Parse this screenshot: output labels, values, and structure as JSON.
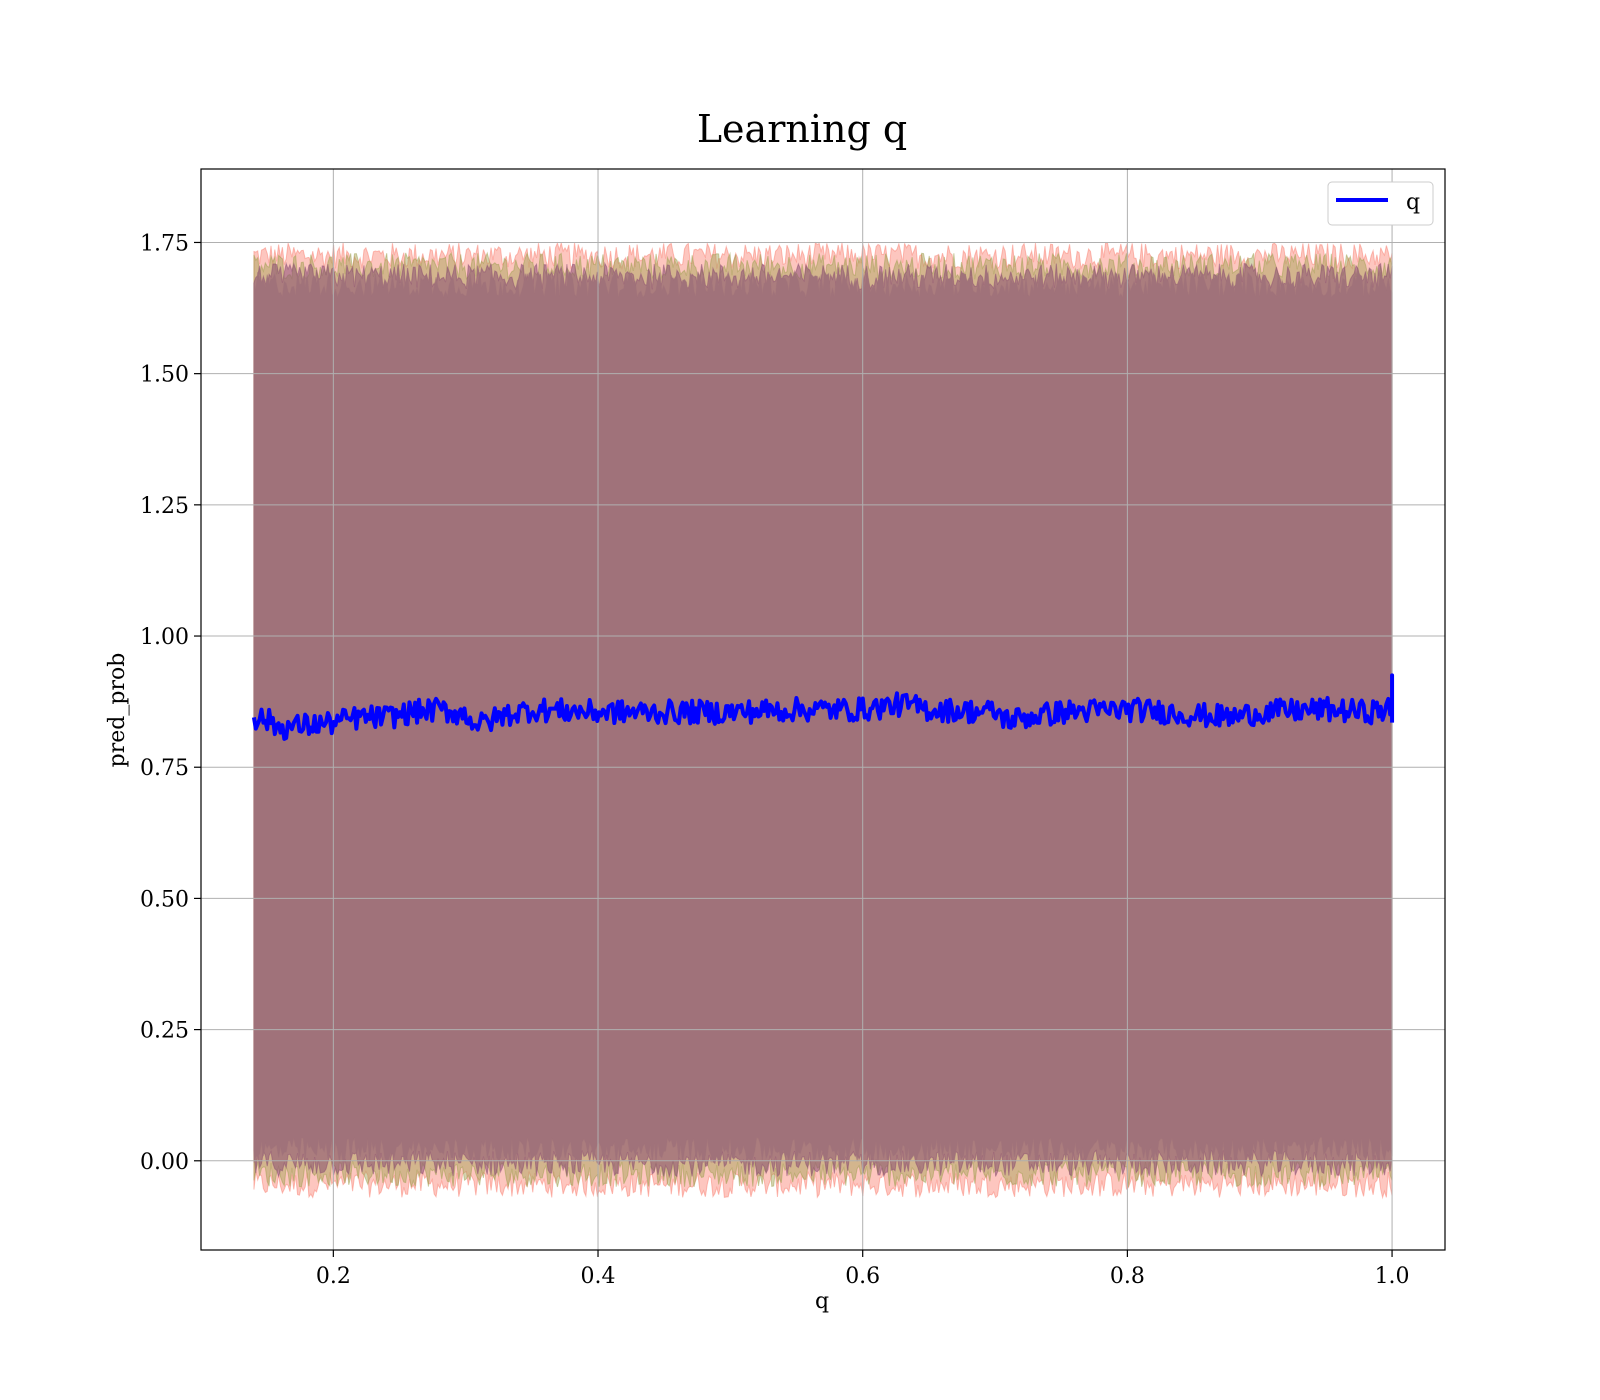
{
  "chart_data": {
    "type": "line",
    "title": "Learning q",
    "xlabel": "q",
    "ylabel": "pred_prob",
    "xlim": [
      0.1,
      1.04
    ],
    "ylim": [
      -0.17,
      1.89
    ],
    "x_ticks": [
      0.2,
      0.4,
      0.6,
      0.8,
      1.0
    ],
    "x_tick_labels": [
      "0.2",
      "0.4",
      "0.6",
      "0.8",
      "1.0"
    ],
    "y_ticks": [
      0.0,
      0.25,
      0.5,
      0.75,
      1.0,
      1.25,
      1.5,
      1.75
    ],
    "y_tick_labels": [
      "0.00",
      "0.25",
      "0.50",
      "0.75",
      "1.00",
      "1.25",
      "1.50",
      "1.75"
    ],
    "grid": true,
    "legend": {
      "position": "top-right",
      "entries": [
        "q"
      ]
    },
    "series": [
      {
        "name": "q",
        "color": "#0000ff",
        "x_range": [
          0.14,
          1.0
        ],
        "mean_level": 0.85,
        "x": [
          0.14,
          0.15,
          0.16,
          0.18,
          0.2,
          0.22,
          0.24,
          0.26,
          0.28,
          0.3,
          0.31,
          0.33,
          0.35,
          0.4,
          0.45,
          0.5,
          0.55,
          0.6,
          0.63,
          0.65,
          0.7,
          0.71,
          0.75,
          0.8,
          0.83,
          0.85,
          0.88,
          0.9,
          0.95,
          0.98,
          1.0
        ],
        "values": [
          0.845,
          0.84,
          0.825,
          0.83,
          0.835,
          0.845,
          0.845,
          0.855,
          0.86,
          0.85,
          0.83,
          0.85,
          0.86,
          0.855,
          0.855,
          0.855,
          0.86,
          0.86,
          0.87,
          0.86,
          0.855,
          0.84,
          0.855,
          0.86,
          0.855,
          0.85,
          0.845,
          0.855,
          0.86,
          0.855,
          0.86
        ]
      }
    ],
    "bands": [
      {
        "fill": "#fa8072",
        "opacity": 0.45,
        "lower": -0.045,
        "upper": 1.725
      },
      {
        "fill": "#a0a050",
        "opacity": 0.45,
        "lower": -0.025,
        "upper": 1.705
      },
      {
        "fill": "#8b4e72",
        "opacity": 0.55,
        "lower": -0.005,
        "upper": 1.685
      },
      {
        "fill": "#a0727a",
        "opacity": 1.0,
        "lower": 0.02,
        "upper": 1.67
      }
    ]
  }
}
